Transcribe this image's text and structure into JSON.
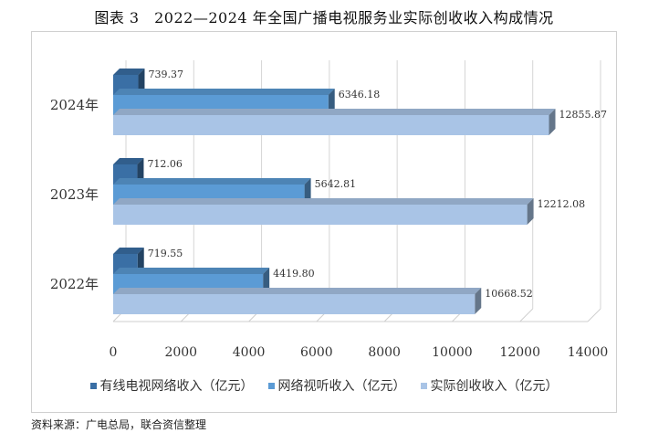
{
  "title": "图表 3　2022—2024 年全国广播电视服务业实际创收收入构成情况",
  "source": "资料来源：广电总局，联合资信整理",
  "chart_data": {
    "type": "bar",
    "orientation": "horizontal",
    "three_d": true,
    "categories": [
      "2024年",
      "2023年",
      "2022年"
    ],
    "series": [
      {
        "name": "有线电视网络收入（亿元）",
        "color": "#3a6fa5",
        "values": [
          739.37,
          712.06,
          719.55
        ],
        "labels": [
          "739.37",
          "712.06",
          "719.55"
        ]
      },
      {
        "name": "网络视听收入（亿元）",
        "color": "#5b9bd5",
        "values": [
          6346.18,
          5642.81,
          4419.8
        ],
        "labels": [
          "6346.18",
          "5642.81",
          "4419.80"
        ]
      },
      {
        "name": "实际创收收入（亿元）",
        "color": "#a9c4e6",
        "values": [
          12855.87,
          12212.08,
          10668.52
        ],
        "labels": [
          "12855.87",
          "12212.08",
          "10668.52"
        ]
      }
    ],
    "xlim": [
      0,
      14000
    ],
    "xticks": [
      "0",
      "2000",
      "4000",
      "6000",
      "8000",
      "10000",
      "12000",
      "14000"
    ],
    "grid": true,
    "legend_position": "bottom"
  }
}
